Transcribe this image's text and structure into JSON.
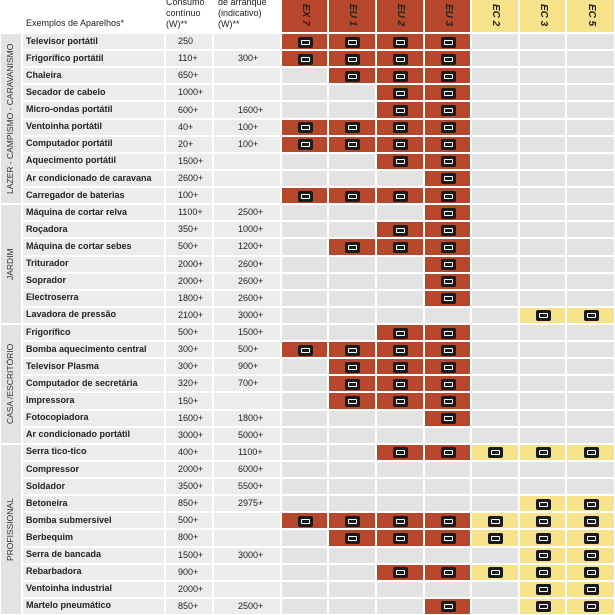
{
  "header": {
    "appliance": "Exemplos de Aparelhos*",
    "continuous": [
      "Consumo",
      "contínuo",
      "(W)**"
    ],
    "startup": [
      "de arranque",
      "(indicativo)",
      "(W)**"
    ]
  },
  "models": [
    {
      "name": "EX 7",
      "color": "#b6472d"
    },
    {
      "name": "EU 1",
      "color": "#b6472d"
    },
    {
      "name": "EU 2",
      "color": "#b6472d"
    },
    {
      "name": "EU 3",
      "color": "#b6472d"
    },
    {
      "name": "EC 2",
      "color": "#f7e38c"
    },
    {
      "name": "EC 3",
      "color": "#f7e38c"
    },
    {
      "name": "EC 5",
      "color": "#f7e38c"
    }
  ],
  "groups": [
    {
      "label": "LAZER - CAMPISMO - CARAVANISMO",
      "rows": [
        {
          "name": "Televisor portátil",
          "continuous": "250",
          "fits": [
            0,
            1,
            2,
            3
          ]
        },
        {
          "name": "Frigorífico portátil",
          "continuous": "110+",
          "startup": "300+",
          "fits": [
            0,
            1,
            2,
            3
          ]
        },
        {
          "name": "Chaleira",
          "continuous": "650+",
          "fits": [
            1,
            2,
            3
          ]
        },
        {
          "name": "Secador de cabelo",
          "continuous": "1000+",
          "fits": [
            2,
            3
          ]
        },
        {
          "name": "Micro-ondas portátil",
          "continuous": "600+",
          "startup": "1600+",
          "fits": [
            2,
            3
          ]
        },
        {
          "name": "Ventoinha portátil",
          "continuous": "40+",
          "startup": "100+",
          "fits": [
            0,
            1,
            2,
            3
          ]
        },
        {
          "name": "Computador portátil",
          "continuous": "20+",
          "startup": "100+",
          "fits": [
            0,
            1,
            2,
            3
          ]
        },
        {
          "name": "Aquecimento portátil",
          "continuous": "1500+",
          "fits": [
            2,
            3
          ]
        },
        {
          "name": "Ar condicionado de caravana",
          "continuous": "2600+",
          "fits": [
            3
          ]
        },
        {
          "name": "Carregador de baterias",
          "continuous": "100+",
          "fits": [
            0,
            1,
            2,
            3
          ]
        }
      ]
    },
    {
      "label": "JARDIM",
      "rows": [
        {
          "name": "Máquina de cortar relva",
          "continuous": "1100+",
          "startup": "2500+",
          "fits": [
            3
          ]
        },
        {
          "name": "Roçadora",
          "continuous": "350+",
          "startup": "1000+",
          "fits": [
            2,
            3
          ]
        },
        {
          "name": "Máquina de cortar sebes",
          "continuous": "500+",
          "startup": "1200+",
          "fits": [
            1,
            2,
            3
          ]
        },
        {
          "name": "Triturador",
          "continuous": "2000+",
          "startup": "2600+",
          "fits": [
            3
          ]
        },
        {
          "name": "Soprador",
          "continuous": "2000+",
          "startup": "2600+",
          "fits": [
            3
          ]
        },
        {
          "name": "Electroserra",
          "continuous": "1800+",
          "startup": "2600+",
          "fits": [
            3
          ]
        },
        {
          "name": "Lavadora de pressão",
          "continuous": "2100+",
          "startup": "3000+",
          "fits": [
            5,
            6
          ]
        }
      ]
    },
    {
      "label": "CASA /ESCRITÓRIO",
      "rows": [
        {
          "name": "Frigorífico",
          "continuous": "500+",
          "startup": "1500+",
          "fits": [
            2,
            3
          ]
        },
        {
          "name": "Bomba aquecimento central",
          "continuous": "300+",
          "startup": "500+",
          "fits": [
            0,
            1,
            2,
            3
          ]
        },
        {
          "name": "Televisor Plasma",
          "continuous": "300+",
          "startup": "900+",
          "fits": [
            1,
            2,
            3
          ]
        },
        {
          "name": "Computador de secretária",
          "continuous": "320+",
          "startup": "700+",
          "fits": [
            1,
            2,
            3
          ]
        },
        {
          "name": "Impressora",
          "continuous": "150+",
          "fits": [
            1,
            2,
            3
          ]
        },
        {
          "name": "Fotocopiadora",
          "continuous": "1600+",
          "startup": "1800+",
          "fits": [
            3
          ]
        },
        {
          "name": "Ar condicionado portátil",
          "continuous": "3000+",
          "startup": "5000+",
          "fits": []
        }
      ]
    },
    {
      "label": "PROFISSIONAL",
      "rows": [
        {
          "name": "Serra tico-tico",
          "continuous": "400+",
          "startup": "1100+",
          "fits": [
            2,
            3,
            4,
            5,
            6
          ]
        },
        {
          "name": "Compressor",
          "continuous": "2000+",
          "startup": "6000+",
          "fits": []
        },
        {
          "name": "Soldador",
          "continuous": "3500+",
          "startup": "5500+",
          "fits": []
        },
        {
          "name": "Betoneira",
          "continuous": "850+",
          "startup": "2975+",
          "fits": [
            5,
            6
          ]
        },
        {
          "name": "Bomba submersível",
          "continuous": "500+",
          "fits": [
            0,
            1,
            2,
            3,
            4,
            5,
            6
          ]
        },
        {
          "name": "Berbequim",
          "continuous": "800+",
          "fits": [
            1,
            2,
            3,
            4,
            5,
            6
          ]
        },
        {
          "name": "Serra de bancada",
          "continuous": "1500+",
          "startup": "3000+",
          "fits": [
            5,
            6
          ]
        },
        {
          "name": "Rebarbadora",
          "continuous": "900+",
          "fits": [
            2,
            3,
            4,
            5,
            6
          ]
        },
        {
          "name": "Ventoinha industrial",
          "continuous": "2000+",
          "fits": [
            5,
            6
          ]
        },
        {
          "name": "Martelo pneumático",
          "continuous": "850+",
          "startup": "2500+",
          "fits": [
            3,
            5,
            6
          ]
        }
      ]
    }
  ]
}
